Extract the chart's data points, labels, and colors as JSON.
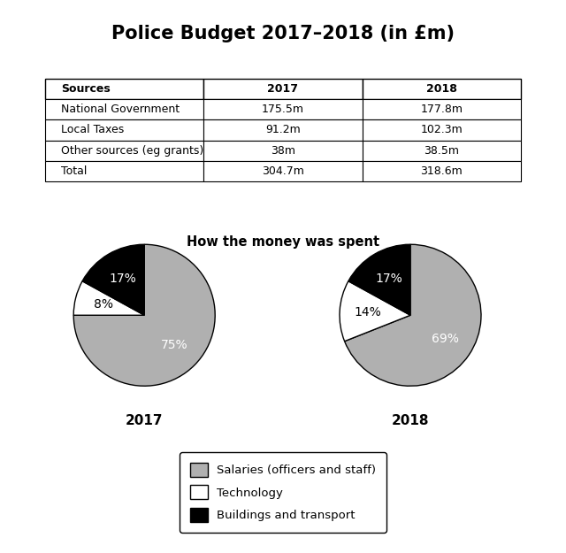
{
  "title": "Police Budget 2017–2018 (in £m)",
  "title_fontsize": 15,
  "table_headers": [
    "Sources",
    "2017",
    "2018"
  ],
  "table_rows": [
    [
      "National Government",
      "175.5m",
      "177.8m"
    ],
    [
      "Local Taxes",
      "91.2m",
      "102.3m"
    ],
    [
      "Other sources (eg grants)",
      "38m",
      "38.5m"
    ],
    [
      "Total",
      "304.7m",
      "318.6m"
    ]
  ],
  "pie_subtitle": "How the money was spent",
  "pie_values_2017": [
    75,
    8,
    17
  ],
  "pie_pct_labels_2017": [
    "75%",
    "8%",
    "17%"
  ],
  "pie_pct_colors_2017": [
    "white",
    "black",
    "white"
  ],
  "pie_values_2018": [
    69,
    14,
    17
  ],
  "pie_pct_labels_2018": [
    "69%",
    "14%",
    "17%"
  ],
  "pie_pct_colors_2018": [
    "white",
    "black",
    "white"
  ],
  "pie_colors": [
    "#b0b0b0",
    "#ffffff",
    "#000000"
  ],
  "pie_year_2017": "2017",
  "pie_year_2018": "2018",
  "legend_labels": [
    "Salaries (officers and staff)",
    "Technology",
    "Buildings and transport"
  ],
  "legend_colors": [
    "#b0b0b0",
    "#ffffff",
    "#000000"
  ],
  "background_color": "#ffffff"
}
